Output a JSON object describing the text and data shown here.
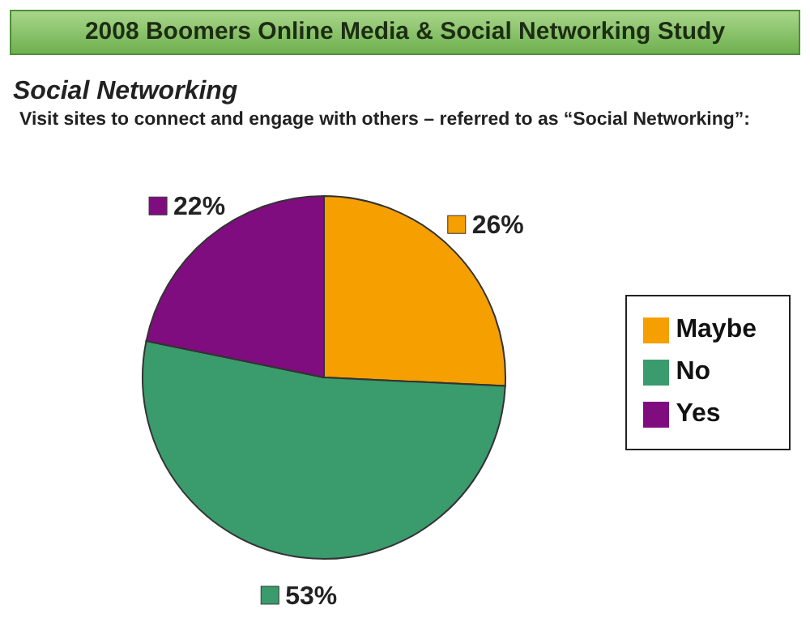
{
  "chart_data": {
    "type": "pie",
    "title": "2008 Boomers Online Media & Social Networking Study",
    "subtitle": "Social Networking",
    "annotations": [
      "Visit sites to connect and engage with others – referred to as “Social Networking”:"
    ],
    "categories": [
      "Maybe",
      "No",
      "Yes"
    ],
    "values": [
      26,
      53,
      22
    ],
    "colors": [
      "#f59f00",
      "#3a9b6c",
      "#800d80"
    ],
    "value_labels": [
      "26%",
      "53%",
      "22%"
    ],
    "legend": "right"
  }
}
